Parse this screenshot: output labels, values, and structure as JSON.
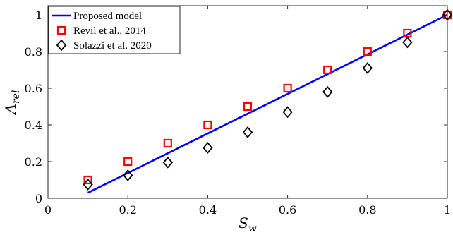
{
  "chart_data": {
    "type": "scatter",
    "xlabel": {
      "main": "S",
      "sub": "w"
    },
    "ylabel": {
      "main": "Λ",
      "sub": "rel"
    },
    "xlim": [
      0,
      1
    ],
    "ylim": [
      0,
      1.05
    ],
    "x_ticks": [
      0,
      0.2,
      0.4,
      0.6,
      0.8,
      1
    ],
    "x_tick_labels": [
      "0",
      "0.2",
      "0.4",
      "0.6",
      "0.8",
      "1"
    ],
    "y_ticks": [
      0,
      0.2,
      0.4,
      0.6,
      0.8,
      1
    ],
    "y_tick_labels": [
      "0",
      "0.2",
      "0.4",
      "0.6",
      "0.8",
      "1"
    ],
    "grid": false,
    "legend_position": "top-left",
    "series": [
      {
        "name": "Proposed model",
        "kind": "line",
        "color": "#0000ff",
        "x": [
          0.1,
          1.0
        ],
        "y": [
          0.03,
          1.0
        ]
      },
      {
        "name": "Revil et al., 2014",
        "kind": "marker-square",
        "color": "#ff0000",
        "x": [
          0.1,
          0.2,
          0.3,
          0.4,
          0.5,
          0.6,
          0.7,
          0.8,
          0.9,
          1.0
        ],
        "y": [
          0.1,
          0.2,
          0.3,
          0.4,
          0.5,
          0.6,
          0.7,
          0.8,
          0.9,
          1.0
        ]
      },
      {
        "name": "Solazzi et al. 2020",
        "kind": "marker-diamond",
        "color": "#000000",
        "x": [
          0.1,
          0.2,
          0.3,
          0.4,
          0.5,
          0.6,
          0.7,
          0.8,
          0.9,
          1.0
        ],
        "y": [
          0.075,
          0.125,
          0.195,
          0.275,
          0.36,
          0.47,
          0.58,
          0.71,
          0.85,
          1.0
        ]
      }
    ]
  }
}
